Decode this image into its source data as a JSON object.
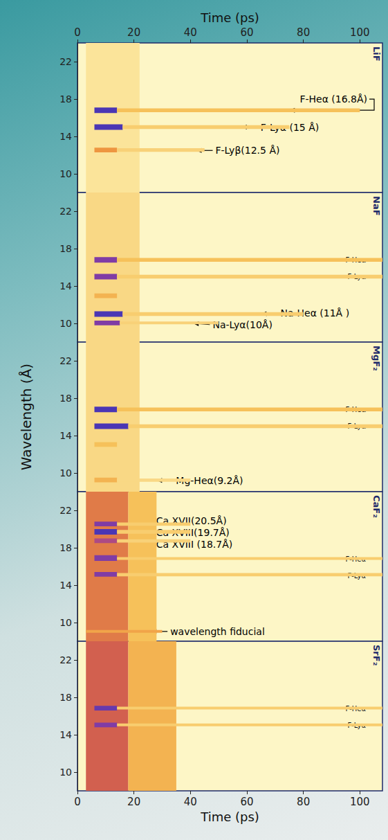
{
  "chart_data": {
    "type": "streak",
    "x_label": "Time (ps)",
    "y_label": "Wavelength (Å)",
    "xlim": [
      0,
      108
    ],
    "xticks": [
      0,
      20,
      40,
      60,
      80,
      100
    ],
    "panels": [
      {
        "title": "LiF",
        "ylim": [
          8,
          24
        ],
        "yticks": [
          10,
          14,
          18,
          22
        ],
        "emission": [
          {
            "t0": 3,
            "t1": 22,
            "wl_lo": 8,
            "wl_hi": 24,
            "intensity": 0.2
          },
          {
            "t0": 6,
            "t1": 14,
            "wl_lo": 16.5,
            "wl_hi": 17.1,
            "intensity": 1
          },
          {
            "t0": 14,
            "t1": 100,
            "wl_lo": 16.6,
            "wl_hi": 17.0,
            "intensity": 0.35
          },
          {
            "t0": 6,
            "t1": 16,
            "wl_lo": 14.7,
            "wl_hi": 15.3,
            "intensity": 1
          },
          {
            "t0": 16,
            "t1": 75,
            "wl_lo": 14.8,
            "wl_hi": 15.2,
            "intensity": 0.3
          },
          {
            "t0": 6,
            "t1": 14,
            "wl_lo": 12.3,
            "wl_hi": 12.8,
            "intensity": 0.5
          },
          {
            "t0": 14,
            "t1": 45,
            "wl_lo": 12.35,
            "wl_hi": 12.75,
            "intensity": 0.28
          }
        ],
        "annotations": [
          {
            "text": "F-Heα (16.8Å)",
            "time": 75,
            "wavelength": 16.8
          },
          {
            "text": "F-Lyα (15 Å)",
            "time": 58,
            "wavelength": 15
          },
          {
            "text": "F-Lyβ(12.5 Å)",
            "time": 42,
            "wavelength": 12.5
          }
        ],
        "line_tags": []
      },
      {
        "title": "NaF",
        "ylim": [
          8,
          24
        ],
        "yticks": [
          10,
          14,
          18,
          22
        ],
        "emission": [
          {
            "t0": 3,
            "t1": 22,
            "wl_lo": 8,
            "wl_hi": 24,
            "intensity": 0.25
          },
          {
            "t0": 6,
            "t1": 14,
            "wl_lo": 16.5,
            "wl_hi": 17.1,
            "intensity": 0.9
          },
          {
            "t0": 14,
            "t1": 108,
            "wl_lo": 16.6,
            "wl_hi": 17.0,
            "intensity": 0.35
          },
          {
            "t0": 6,
            "t1": 14,
            "wl_lo": 14.7,
            "wl_hi": 15.3,
            "intensity": 0.9
          },
          {
            "t0": 14,
            "t1": 108,
            "wl_lo": 14.8,
            "wl_hi": 15.2,
            "intensity": 0.3
          },
          {
            "t0": 6,
            "t1": 14,
            "wl_lo": 12.7,
            "wl_hi": 13.2,
            "intensity": 0.4
          },
          {
            "t0": 6,
            "t1": 16,
            "wl_lo": 10.7,
            "wl_hi": 11.3,
            "intensity": 1
          },
          {
            "t0": 16,
            "t1": 80,
            "wl_lo": 10.8,
            "wl_hi": 11.2,
            "intensity": 0.3
          },
          {
            "t0": 6,
            "t1": 15,
            "wl_lo": 9.8,
            "wl_hi": 10.3,
            "intensity": 0.9
          },
          {
            "t0": 15,
            "t1": 50,
            "wl_lo": 9.9,
            "wl_hi": 10.2,
            "intensity": 0.28
          }
        ],
        "annotations": [
          {
            "text": "Na-Heα (11Å )",
            "time": 65,
            "wavelength": 11
          },
          {
            "text": "Na-Lyα(10Å)",
            "time": 41,
            "wavelength": 10
          }
        ],
        "line_tags": [
          {
            "text": "F-Heα",
            "wavelength": 16.8
          },
          {
            "text": "F-Lyα",
            "wavelength": 15
          }
        ]
      },
      {
        "title": "MgF₂",
        "ylim": [
          8,
          24
        ],
        "yticks": [
          10,
          14,
          18,
          22
        ],
        "emission": [
          {
            "t0": 3,
            "t1": 22,
            "wl_lo": 8,
            "wl_hi": 24,
            "intensity": 0.25
          },
          {
            "t0": 6,
            "t1": 14,
            "wl_lo": 16.5,
            "wl_hi": 17.1,
            "intensity": 1
          },
          {
            "t0": 14,
            "t1": 108,
            "wl_lo": 16.6,
            "wl_hi": 17.0,
            "intensity": 0.35
          },
          {
            "t0": 6,
            "t1": 18,
            "wl_lo": 14.7,
            "wl_hi": 15.3,
            "intensity": 1
          },
          {
            "t0": 18,
            "t1": 108,
            "wl_lo": 14.8,
            "wl_hi": 15.2,
            "intensity": 0.3
          },
          {
            "t0": 6,
            "t1": 14,
            "wl_lo": 12.8,
            "wl_hi": 13.3,
            "intensity": 0.35
          },
          {
            "t0": 6,
            "t1": 14,
            "wl_lo": 9.0,
            "wl_hi": 9.5,
            "intensity": 0.4
          },
          {
            "t0": 14,
            "t1": 40,
            "wl_lo": 9.05,
            "wl_hi": 9.4,
            "intensity": 0.25
          }
        ],
        "annotations": [
          {
            "text": "Mg-Heα(9.2Å)",
            "time": 28,
            "wavelength": 9.2
          }
        ],
        "line_tags": [
          {
            "text": "F-Heα",
            "wavelength": 16.8
          },
          {
            "text": "F-Lyα",
            "wavelength": 15
          }
        ]
      },
      {
        "title": "CaF₂",
        "ylim": [
          8,
          24
        ],
        "yticks": [
          10,
          14,
          18,
          22
        ],
        "emission": [
          {
            "t0": 3,
            "t1": 18,
            "wl_lo": 8,
            "wl_hi": 24,
            "intensity": 0.6
          },
          {
            "t0": 18,
            "t1": 28,
            "wl_lo": 8,
            "wl_hi": 24,
            "intensity": 0.35
          },
          {
            "t0": 6,
            "t1": 14,
            "wl_lo": 20.3,
            "wl_hi": 20.8,
            "intensity": 0.9
          },
          {
            "t0": 14,
            "t1": 40,
            "wl_lo": 20.35,
            "wl_hi": 20.7,
            "intensity": 0.3
          },
          {
            "t0": 6,
            "t1": 14,
            "wl_lo": 19.4,
            "wl_hi": 20.0,
            "intensity": 1
          },
          {
            "t0": 14,
            "t1": 40,
            "wl_lo": 19.5,
            "wl_hi": 19.9,
            "intensity": 0.3
          },
          {
            "t0": 6,
            "t1": 14,
            "wl_lo": 18.5,
            "wl_hi": 19.0,
            "intensity": 0.8
          },
          {
            "t0": 14,
            "t1": 40,
            "wl_lo": 18.55,
            "wl_hi": 18.9,
            "intensity": 0.28
          },
          {
            "t0": 6,
            "t1": 14,
            "wl_lo": 16.6,
            "wl_hi": 17.2,
            "intensity": 0.9
          },
          {
            "t0": 14,
            "t1": 108,
            "wl_lo": 16.7,
            "wl_hi": 17.0,
            "intensity": 0.3
          },
          {
            "t0": 6,
            "t1": 14,
            "wl_lo": 14.9,
            "wl_hi": 15.4,
            "intensity": 0.9
          },
          {
            "t0": 14,
            "t1": 108,
            "wl_lo": 14.95,
            "wl_hi": 15.3,
            "intensity": 0.3
          },
          {
            "t0": 3,
            "t1": 30,
            "wl_lo": 8.9,
            "wl_hi": 9.2,
            "intensity": 0.45
          }
        ],
        "annotations": [
          {
            "text": "Ca XVII(20.5Å)",
            "time": 21,
            "wavelength": 20.5
          },
          {
            "text": "Ca XVIII(19.7Å)",
            "time": 21,
            "wavelength": 19.7
          },
          {
            "text": "Ca XVIII (18.7Å)",
            "time": 21,
            "wavelength": 18.7
          },
          {
            "text": "wavelength fiducial",
            "time": 26,
            "wavelength": 9.05
          }
        ],
        "line_tags": [
          {
            "text": "F-Heα",
            "wavelength": 16.8
          },
          {
            "text": "F-Lyα",
            "wavelength": 15
          }
        ]
      },
      {
        "title": "SrF₂",
        "ylim": [
          8,
          24
        ],
        "yticks": [
          10,
          14,
          18,
          22
        ],
        "emission": [
          {
            "t0": 3,
            "t1": 18,
            "wl_lo": 8,
            "wl_hi": 24,
            "intensity": 0.7
          },
          {
            "t0": 18,
            "t1": 35,
            "wl_lo": 8,
            "wl_hi": 24,
            "intensity": 0.4
          },
          {
            "t0": 6,
            "t1": 14,
            "wl_lo": 16.6,
            "wl_hi": 17.1,
            "intensity": 0.95
          },
          {
            "t0": 14,
            "t1": 108,
            "wl_lo": 16.7,
            "wl_hi": 17.0,
            "intensity": 0.3
          },
          {
            "t0": 6,
            "t1": 14,
            "wl_lo": 14.8,
            "wl_hi": 15.3,
            "intensity": 0.9
          },
          {
            "t0": 14,
            "t1": 108,
            "wl_lo": 14.9,
            "wl_hi": 15.2,
            "intensity": 0.3
          }
        ],
        "annotations": [],
        "line_tags": [
          {
            "text": "F-Heα",
            "wavelength": 16.8
          },
          {
            "text": "F-Lyα",
            "wavelength": 15
          }
        ]
      }
    ]
  }
}
